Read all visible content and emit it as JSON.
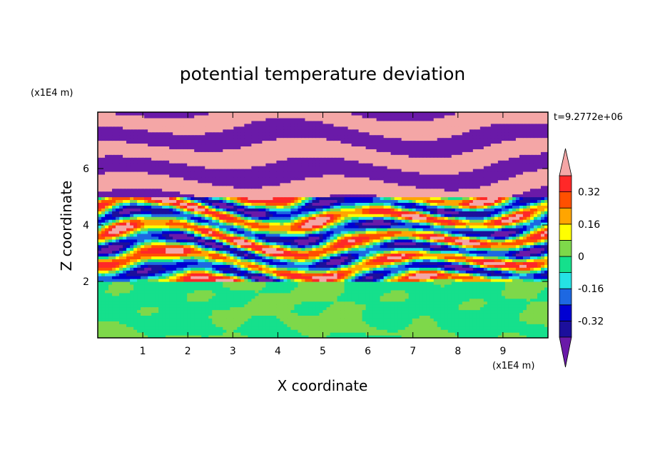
{
  "chart_data": {
    "type": "heatmap",
    "title": "potential temperature deviation",
    "xlabel": "X coordinate",
    "ylabel": "Z coordinate",
    "x_unit": "(x1E4 m)",
    "y_unit": "(x1E4 m)",
    "time_label": "t=9.2772e+06",
    "xlim": [
      0,
      10
    ],
    "ylim": [
      0,
      8
    ],
    "x_ticks": [
      "1",
      "2",
      "3",
      "4",
      "5",
      "6",
      "7",
      "8",
      "9"
    ],
    "y_ticks": [
      "2",
      "4",
      "6"
    ],
    "colorbar": {
      "levels": [
        -0.4,
        -0.32,
        -0.24,
        -0.16,
        -0.08,
        0,
        0.08,
        0.16,
        0.24,
        0.32,
        0.4
      ],
      "tick_labels": [
        "-0.32",
        "-0.16",
        "0",
        "0.16",
        "0.32"
      ],
      "colors": [
        "#5c1c9c",
        "#1c0f9c",
        "#0000d2",
        "#1d68e2",
        "#25e2e4",
        "#15e08c",
        "#7ed84a",
        "#ffff00",
        "#ffa500",
        "#ff5000",
        "#ff2828",
        "#f2aaaa"
      ],
      "under_color": "#6a1aa8",
      "over_color": "#f4a6a6"
    },
    "regions": [
      {
        "z_range": [
          0,
          2
        ],
        "description_levels": [
          0,
          0.08
        ],
        "pattern": "convective mixed layer"
      },
      {
        "z_range": [
          2,
          5
        ],
        "description_levels": [
          -0.4,
          0.4
        ],
        "pattern": "wavy gravity wave layers"
      },
      {
        "z_range": [
          5,
          8
        ],
        "description_levels": [
          -0.4,
          0.4
        ],
        "pattern": "alternating saturated bands"
      }
    ]
  }
}
